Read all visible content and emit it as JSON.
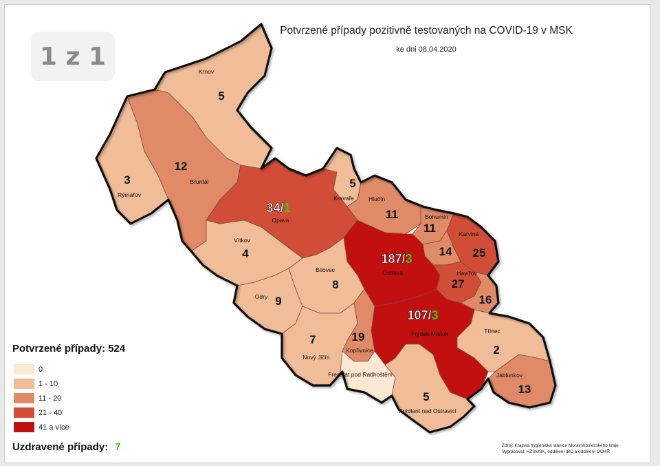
{
  "page_indicator": "1 z 1",
  "title": "Potvrzené případy pozitivně testovaných na COVID-19 v MSK",
  "subtitle": "ke dni 08.04.2020",
  "legend": {
    "title": "Potvrzené případy: 524",
    "items": [
      {
        "label": "0",
        "color": "#fde8d4"
      },
      {
        "label": "1 - 10",
        "color": "#f1bc98"
      },
      {
        "label": "11 - 20",
        "color": "#e08a68"
      },
      {
        "label": "21 - 40",
        "color": "#d24d38"
      },
      {
        "label": "41 a více",
        "color": "#c20f0f"
      }
    ]
  },
  "recovered": {
    "label": "Uzdravené případy:",
    "value": "7"
  },
  "source": {
    "line1": "Zdroj: Krajská hygienická stanice Moravskoslezského kraje",
    "line2": "Vypracoval: HZSMSK, oddělení IBC a oddělení OOKŘ"
  },
  "regions": [
    {
      "id": "krnov",
      "name": "Krnov",
      "count": "5",
      "recovered": "",
      "class": "1-10"
    },
    {
      "id": "bruntal",
      "name": "Bruntál",
      "count": "12",
      "recovered": "",
      "class": "11-20"
    },
    {
      "id": "rymarov",
      "name": "Rýmařov",
      "count": "3",
      "recovered": "",
      "class": "1-10"
    },
    {
      "id": "opava",
      "name": "Opava",
      "count": "34/",
      "recovered": "1",
      "class": "21-40"
    },
    {
      "id": "kravare",
      "name": "Kravaře",
      "count": "5",
      "recovered": "",
      "class": "1-10"
    },
    {
      "id": "hlucin",
      "name": "Hlučín",
      "count": "11",
      "recovered": "",
      "class": "11-20"
    },
    {
      "id": "bohumin",
      "name": "Bohumín",
      "count": "11",
      "recovered": "",
      "class": "11-20"
    },
    {
      "id": "karvina",
      "name": "Karviná",
      "count": "25",
      "recovered": "",
      "class": "21-40"
    },
    {
      "id": "orlova",
      "name": "",
      "count": "14",
      "recovered": "",
      "class": "11-20"
    },
    {
      "id": "vitkov",
      "name": "Vítkov",
      "count": "4",
      "recovered": "",
      "class": "1-10"
    },
    {
      "id": "ostrava",
      "name": "Ostrava",
      "count": "187/",
      "recovered": "3",
      "class": "41+"
    },
    {
      "id": "havirov",
      "name": "Havířov",
      "count": "27",
      "recovered": "",
      "class": "21-40"
    },
    {
      "id": "cesky-tesin",
      "name": "",
      "count": "16",
      "recovered": "",
      "class": "11-20"
    },
    {
      "id": "bilovec",
      "name": "Bílovec",
      "count": "8",
      "recovered": "",
      "class": "1-10"
    },
    {
      "id": "odry",
      "name": "Odry",
      "count": "9",
      "recovered": "",
      "class": "1-10"
    },
    {
      "id": "frydek",
      "name": "Frýdek-Místek",
      "count": "107/",
      "recovered": "3",
      "class": "41+"
    },
    {
      "id": "trinec",
      "name": "Třinec",
      "count": "2",
      "recovered": "",
      "class": "1-10"
    },
    {
      "id": "novy-jicin",
      "name": "Nový Jičín",
      "count": "7",
      "recovered": "",
      "class": "1-10"
    },
    {
      "id": "koprivnice",
      "name": "Kopřivnice",
      "count": "19",
      "recovered": "",
      "class": "11-20"
    },
    {
      "id": "jablunkov",
      "name": "Jablunkov",
      "count": "13",
      "recovered": "",
      "class": "11-20"
    },
    {
      "id": "frenstat",
      "name": "Frenštát pod Radhoštěm",
      "count": "",
      "recovered": "",
      "class": "0"
    },
    {
      "id": "frydlant",
      "name": "Frýdlant nad Ostravicí",
      "count": "5",
      "recovered": "",
      "class": "1-10"
    }
  ]
}
